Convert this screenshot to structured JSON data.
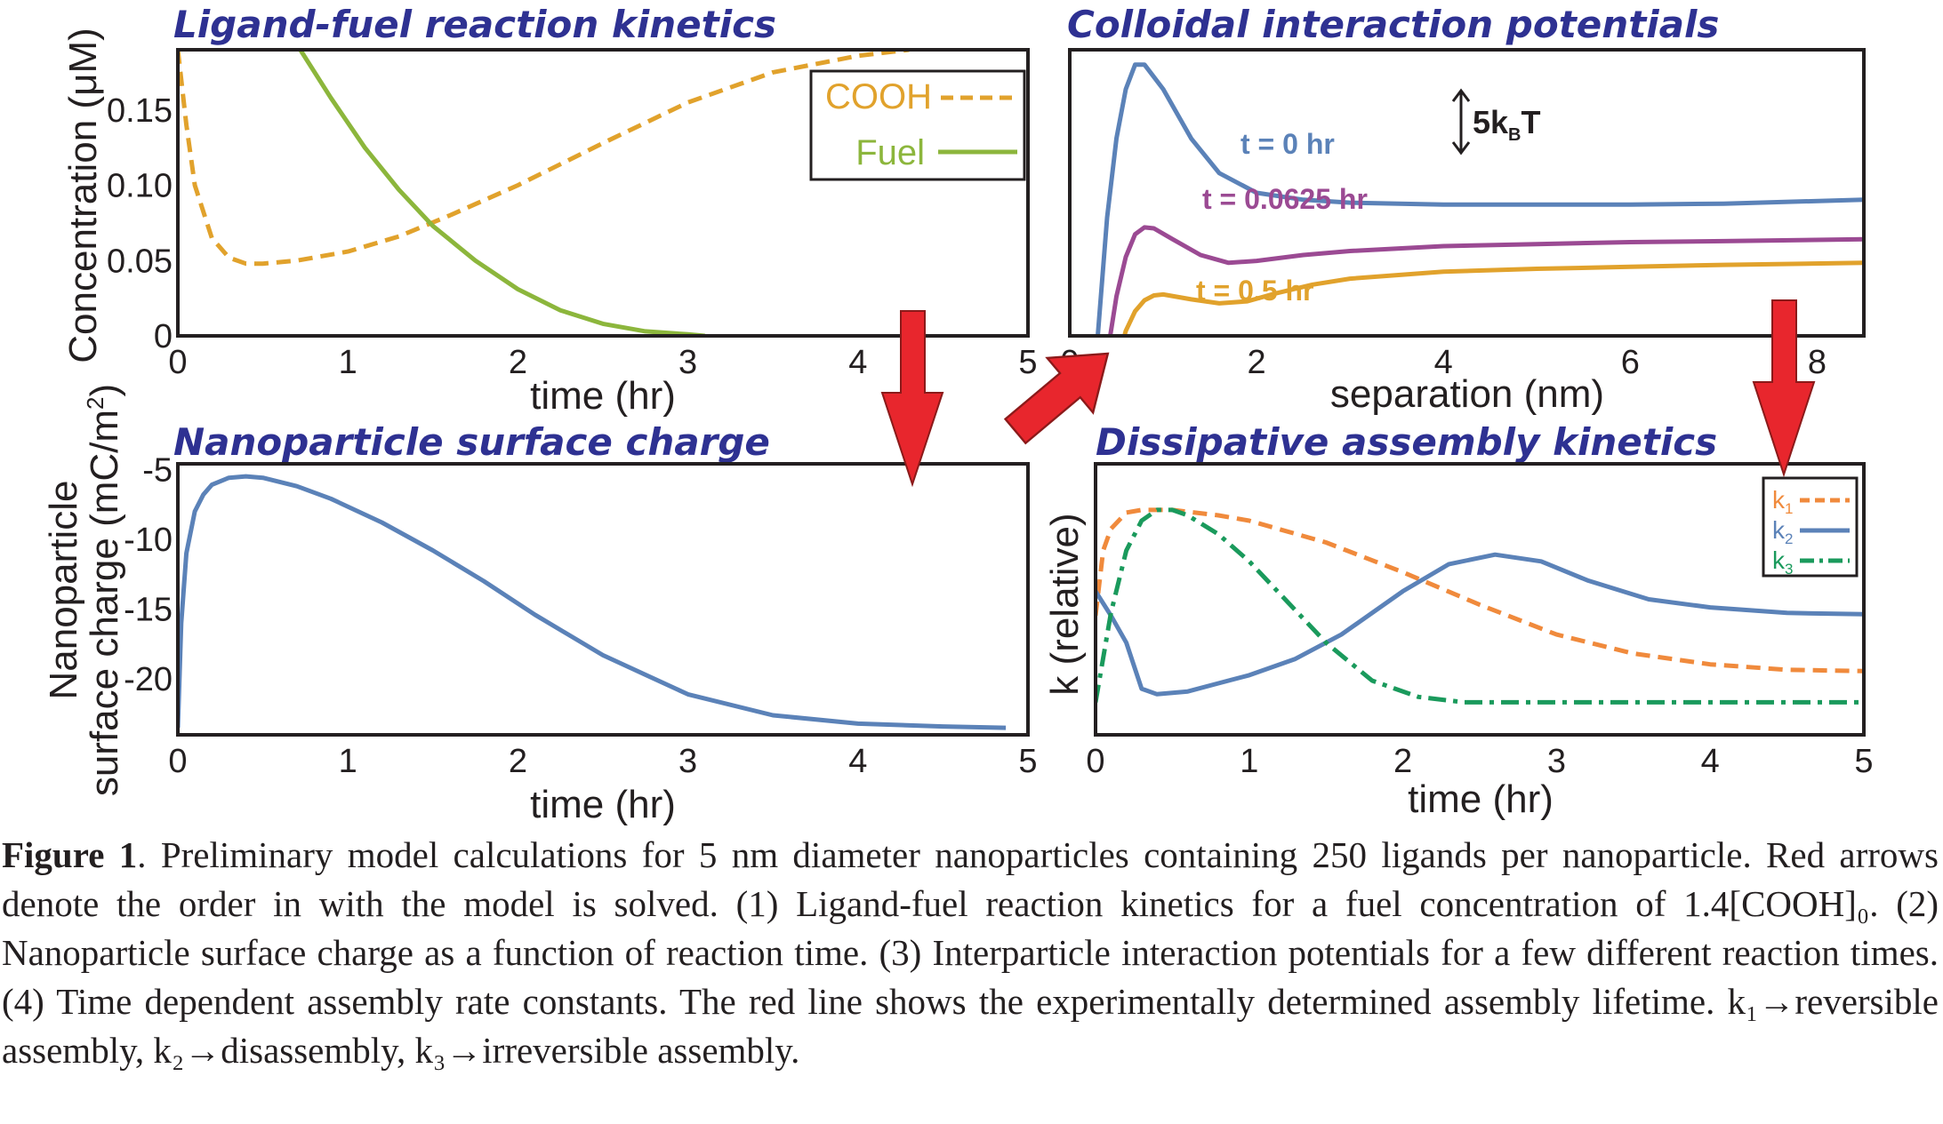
{
  "figure": {
    "caption": {
      "label": "Figure 1",
      "text": ". Preliminary model calculations for 5 nm diameter nanoparticles containing 250 ligands per nanoparticle. Red arrows denote the order in with the model is solved. (1) Ligand-fuel reaction kinetics for a fuel concentration of 1.4[COOH]₀. (2) Nanoparticle surface charge as a function of reaction time. (3) Interparticle interaction potentials for a few different reaction times. (4) Time dependent assembly rate constants. The red line shows the experimentally determined assembly lifetime. k₁→reversible assembly, k₂→disassembly, k₃→irreversible assembly."
    },
    "arrows": {
      "color": "#e8262d",
      "count": 3
    }
  },
  "chart_data": [
    {
      "type": "line",
      "title": "Ligand-fuel reaction kinetics",
      "xlabel": "time (hr)",
      "ylabel": "Concentration (μM)",
      "xlim": [
        0,
        5
      ],
      "ylim": [
        0,
        0.19
      ],
      "xticks": [
        "0",
        "1",
        "2",
        "3",
        "4",
        "5"
      ],
      "yticks": [
        "0",
        "0.05",
        "0.10",
        "0.15"
      ],
      "legend": "top-right",
      "series": [
        {
          "name": "COOH",
          "color": "#e1a22c",
          "dash": "dashed",
          "x": [
            0,
            0.05,
            0.1,
            0.2,
            0.3,
            0.4,
            0.5,
            0.7,
            1.0,
            1.3,
            1.6,
            2.0,
            2.5,
            3.0,
            3.5,
            4.0,
            4.3
          ],
          "y": [
            0.19,
            0.14,
            0.1,
            0.065,
            0.052,
            0.048,
            0.048,
            0.05,
            0.056,
            0.066,
            0.08,
            0.1,
            0.128,
            0.155,
            0.175,
            0.186,
            0.19
          ]
        },
        {
          "name": "Fuel",
          "color": "#8cb63c",
          "dash": "solid",
          "x": [
            0.72,
            0.9,
            1.1,
            1.3,
            1.5,
            1.75,
            2.0,
            2.25,
            2.5,
            2.75,
            3.0,
            3.1
          ],
          "y": [
            0.19,
            0.158,
            0.125,
            0.097,
            0.073,
            0.05,
            0.031,
            0.017,
            0.008,
            0.003,
            0.001,
            0.0
          ]
        }
      ]
    },
    {
      "type": "line",
      "title": "Colloidal interaction potentials",
      "xlabel": "separation (nm)",
      "ylabel": "",
      "xlim": [
        0,
        8.5
      ],
      "xticks": [
        "0",
        "2",
        "4",
        "6",
        "8"
      ],
      "scale_bar_label": "5k_BT",
      "scale_bar_text": "5k",
      "scale_bar_sub": "B",
      "scale_bar_suffix": "T",
      "series": [
        {
          "name": "t = 0 hr",
          "color": "#5b82b8",
          "x": [
            0.22,
            0.3,
            0.4,
            0.5,
            0.6,
            0.7,
            0.8,
            1.0,
            1.3,
            1.6,
            2.0,
            2.5,
            3.0,
            4.0,
            5.0,
            6.0,
            7.0,
            8.5
          ],
          "y": [
            -12,
            -2,
            10,
            18,
            23,
            25.5,
            25.5,
            23,
            18,
            14.5,
            12.5,
            11.8,
            11.5,
            11.3,
            11.3,
            11.3,
            11.4,
            11.8
          ]
        },
        {
          "name": "t = 0.0625 hr",
          "color": "#9b4a93",
          "x": [
            0.3,
            0.4,
            0.5,
            0.6,
            0.7,
            0.8,
            0.9,
            1.1,
            1.4,
            1.7,
            2.0,
            2.5,
            3.0,
            4.0,
            5.0,
            6.0,
            7.0,
            8.5
          ],
          "y": [
            -12,
            -4,
            2,
            6,
            8.3,
            9,
            8.9,
            7.8,
            6.2,
            5.4,
            5.6,
            6.2,
            6.6,
            7.1,
            7.3,
            7.5,
            7.6,
            7.8
          ]
        },
        {
          "name": "t = 0.5 hr",
          "color": "#e1a22c",
          "x": [
            0.38,
            0.5,
            0.6,
            0.7,
            0.8,
            0.9,
            1.0,
            1.3,
            1.6,
            1.9,
            2.2,
            2.6,
            3.0,
            4.0,
            5.0,
            6.0,
            7.0,
            8.5
          ],
          "y": [
            -12,
            -5,
            -1.5,
            0.5,
            1.6,
            2.1,
            2.2,
            1.7,
            1.3,
            1.5,
            2.3,
            3.2,
            3.8,
            4.5,
            4.8,
            5.0,
            5.2,
            5.4
          ]
        }
      ]
    },
    {
      "type": "line",
      "title": "Nanoparticle surface charge",
      "xlabel": "time (hr)",
      "ylabel_line1": "Nanoparticle",
      "ylabel_line2": "surface charge (mC/m",
      "ylabel_sup": "2",
      "ylabel_close": ")",
      "xlim": [
        0,
        5
      ],
      "ylim": [
        -24,
        -4.6
      ],
      "xticks": [
        "0",
        "1",
        "2",
        "3",
        "4",
        "5"
      ],
      "yticks": [
        "-5",
        "-10",
        "-15",
        "-20"
      ],
      "series": [
        {
          "name": "",
          "color": "#5b82b8",
          "x": [
            0,
            0.02,
            0.05,
            0.1,
            0.15,
            0.2,
            0.3,
            0.4,
            0.5,
            0.7,
            0.9,
            1.2,
            1.5,
            1.8,
            2.1,
            2.5,
            3.0,
            3.5,
            4.0,
            4.5,
            4.87
          ],
          "y": [
            -23.5,
            -16,
            -11,
            -8,
            -6.8,
            -6.1,
            -5.6,
            -5.5,
            -5.6,
            -6.2,
            -7.1,
            -8.8,
            -10.8,
            -13,
            -15.4,
            -18.3,
            -21.1,
            -22.6,
            -23.2,
            -23.4,
            -23.5
          ]
        }
      ]
    },
    {
      "type": "line",
      "title": "Dissipative assembly kinetics",
      "xlabel": "time (hr)",
      "ylabel": "k (relative)",
      "xlim": [
        0,
        5
      ],
      "ylim": [
        0,
        1
      ],
      "xticks": [
        "0",
        "1",
        "2",
        "3",
        "4",
        "5"
      ],
      "legend": "top-right",
      "series": [
        {
          "name": "k₁",
          "sub": "1",
          "color": "#f08a3c",
          "dash": "dashed",
          "x": [
            0,
            0.05,
            0.1,
            0.2,
            0.3,
            0.5,
            0.8,
            1.0,
            1.5,
            2.0,
            2.5,
            3.0,
            3.5,
            4.0,
            4.5,
            5.0
          ],
          "y": [
            0.44,
            0.68,
            0.76,
            0.82,
            0.83,
            0.83,
            0.81,
            0.79,
            0.71,
            0.6,
            0.48,
            0.37,
            0.3,
            0.26,
            0.24,
            0.235
          ]
        },
        {
          "name": "k₂",
          "sub": "2",
          "color": "#5b82b8",
          "dash": "solid",
          "x": [
            0,
            0.1,
            0.2,
            0.3,
            0.4,
            0.6,
            0.8,
            1.0,
            1.3,
            1.6,
            2.0,
            2.3,
            2.6,
            2.9,
            3.2,
            3.6,
            4.0,
            4.5,
            5.0
          ],
          "y": [
            0.53,
            0.44,
            0.34,
            0.17,
            0.15,
            0.16,
            0.19,
            0.22,
            0.28,
            0.37,
            0.53,
            0.63,
            0.665,
            0.64,
            0.57,
            0.5,
            0.47,
            0.45,
            0.445
          ]
        },
        {
          "name": "k₃",
          "sub": "3",
          "color": "#1a9a5c",
          "dash": "dashdot",
          "x": [
            0,
            0.1,
            0.2,
            0.3,
            0.4,
            0.5,
            0.6,
            0.8,
            1.0,
            1.2,
            1.5,
            1.8,
            2.1,
            2.4,
            2.8,
            3.2,
            4.0,
            5.0
          ],
          "y": [
            0.12,
            0.45,
            0.68,
            0.79,
            0.83,
            0.83,
            0.81,
            0.74,
            0.64,
            0.52,
            0.34,
            0.2,
            0.14,
            0.12,
            0.12,
            0.12,
            0.12,
            0.12
          ]
        }
      ]
    }
  ]
}
